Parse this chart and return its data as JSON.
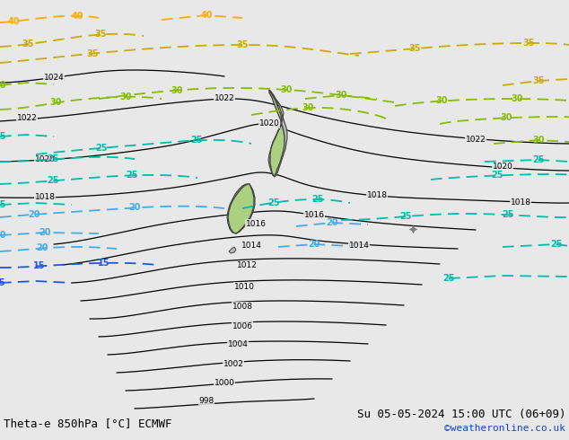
{
  "title_left": "Theta-e 850hPa [°C] ECMWF",
  "title_right": "Su 05-05-2024 15:00 UTC (06+09)",
  "copyright": "©weatheronline.co.uk",
  "bg_color": "#e8e8e8",
  "fig_width": 6.34,
  "fig_height": 4.9,
  "dpi": 100,
  "isobar_color": "#000000",
  "theta35_color": "#ccaa00",
  "theta30_color": "#88bb00",
  "theta25_color": "#00bbaa",
  "theta20_color": "#44aaee",
  "theta15_color": "#2255dd",
  "land_green": "#aad080",
  "land_gray": "#b8b8b8",
  "land_edge": "#444444"
}
